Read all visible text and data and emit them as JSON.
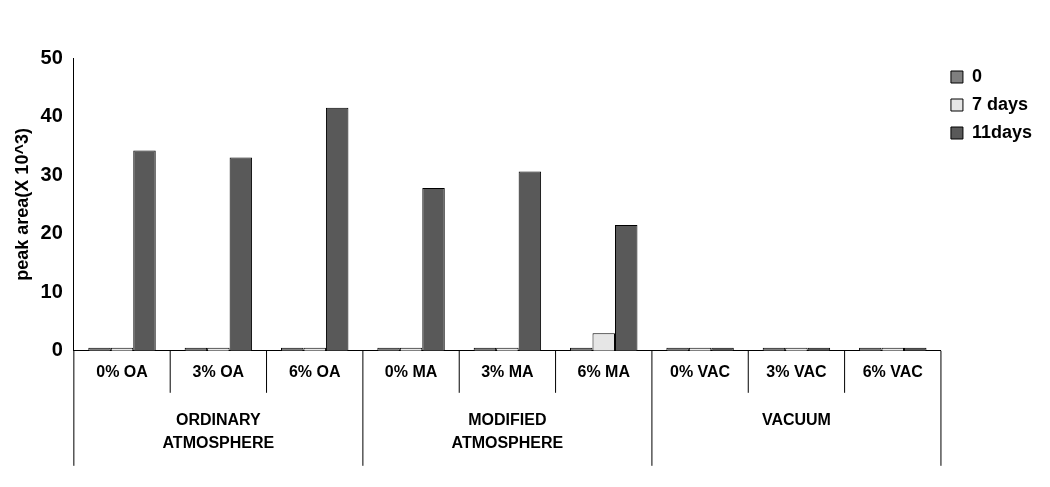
{
  "chart_data": {
    "type": "bar",
    "ylabel": "peak area(X 10^3)",
    "categories": [
      "0% OA",
      "3% OA",
      "6% OA",
      "0% MA",
      "3% MA",
      "6% MA",
      "0% VAC",
      "3% VAC",
      "6% VAC"
    ],
    "series": [
      {
        "name": "0",
        "color": "#7f7f7f",
        "values": [
          0.5,
          0.5,
          0.5,
          0.5,
          0.5,
          0.5,
          0.5,
          0.5,
          0.5
        ]
      },
      {
        "name": "7 days",
        "color": "#e6e6e6",
        "values": [
          0.5,
          0.5,
          0.5,
          0.5,
          0.5,
          3,
          0.5,
          0.5,
          0.5
        ]
      },
      {
        "name": "11days",
        "color": "#595959",
        "values": [
          34.2,
          33,
          41.5,
          27.8,
          30.6,
          21.5,
          0.5,
          0.5,
          0.5
        ]
      }
    ],
    "annotations": [
      "ORDINARY ATMOSPHERE",
      "MODIFIED ATMOSPHERE",
      "VACUUM"
    ],
    "ylim": [
      0,
      50
    ],
    "yticks": [
      0,
      10,
      20,
      30,
      40,
      50
    ],
    "grid": false,
    "legend": "top right"
  }
}
